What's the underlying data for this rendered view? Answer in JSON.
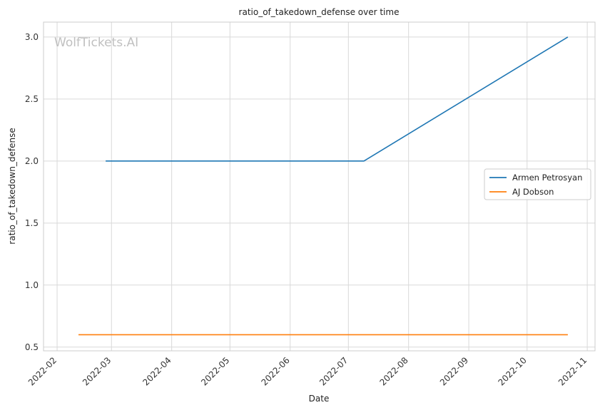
{
  "chart_data": {
    "type": "line",
    "title": "ratio_of_takedown_defense over time",
    "xlabel": "Date",
    "ylabel": "ratio_of_takedown_defense",
    "watermark": "WolfTickets.AI",
    "xlim": [
      "2022-01-25",
      "2022-11-05"
    ],
    "ylim": [
      0.47,
      3.12
    ],
    "x_ticks": [
      "2022-02",
      "2022-03",
      "2022-04",
      "2022-05",
      "2022-06",
      "2022-07",
      "2022-08",
      "2022-09",
      "2022-10",
      "2022-11"
    ],
    "y_ticks": [
      "0.5",
      "1.0",
      "1.5",
      "2.0",
      "2.5",
      "3.0"
    ],
    "grid": true,
    "legend_position": "center-right",
    "series": [
      {
        "name": "Armen Petrosyan",
        "color": "#1f77b4",
        "x": [
          "2022-02-26",
          "2022-07-09",
          "2022-10-22"
        ],
        "y": [
          2.0,
          2.0,
          3.0
        ]
      },
      {
        "name": "AJ Dobson",
        "color": "#ff7f0e",
        "x": [
          "2022-02-12",
          "2022-10-22"
        ],
        "y": [
          0.6,
          0.6
        ]
      }
    ]
  }
}
